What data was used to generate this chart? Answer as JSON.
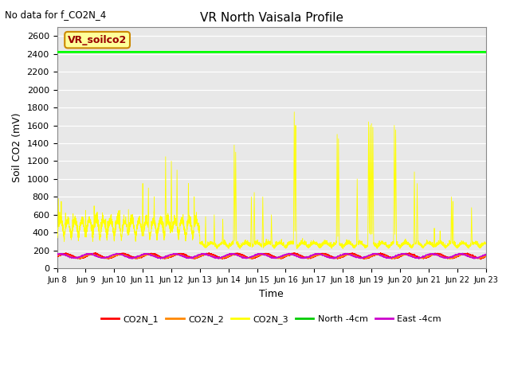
{
  "title": "VR North Vaisala Profile",
  "top_left_text": "No data for f_CO2N_4",
  "xlabel": "Time",
  "ylabel": "Soil CO2 (mV)",
  "ylim": [
    0,
    2700
  ],
  "yticks": [
    0,
    200,
    400,
    600,
    800,
    1000,
    1200,
    1400,
    1600,
    1800,
    2000,
    2200,
    2400,
    2600
  ],
  "bg_color": "#e8e8e8",
  "fig_bg": "#ffffff",
  "annotation_box": {
    "text": "VR_soilco2",
    "facecolor": "#ffff99",
    "edgecolor": "#cc8800",
    "textcolor": "#990000"
  },
  "north_line_value": 2420,
  "north_line_color": "#00ff00",
  "co2n1_color": "#ff0000",
  "co2n2_color": "#ff8800",
  "co2n3_color": "#ffff00",
  "east_color": "#cc00cc",
  "legend_labels": [
    "CO2N_1",
    "CO2N_2",
    "CO2N_3",
    "North -4cm",
    "East -4cm"
  ],
  "legend_colors": [
    "#ff0000",
    "#ff8800",
    "#ffff00",
    "#00cc00",
    "#cc00cc"
  ],
  "num_days": 15,
  "pts_per_day": 288,
  "start_day": 8,
  "xtick_labels": [
    "Jun 8",
    "Jun 9",
    "Jun 10",
    "Jun 11",
    "Jun 12",
    "Jun 13",
    "Jun 14",
    "Jun 15",
    "Jun 16",
    "Jun 17",
    "Jun 18",
    "Jun 19",
    "Jun 20",
    "Jun 21",
    "Jun 22",
    "Jun 23"
  ]
}
